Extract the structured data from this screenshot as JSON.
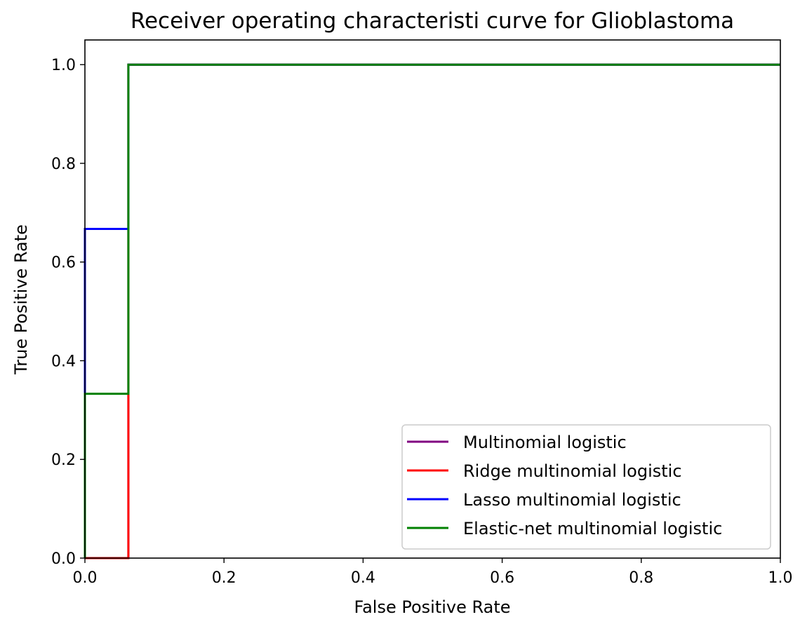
{
  "chart_data": {
    "type": "line",
    "title": "Receiver operating characteristi curve for Glioblastoma",
    "xlabel": "False Positive Rate",
    "ylabel": "True Positive Rate",
    "xlim": [
      0.0,
      1.0
    ],
    "ylim": [
      0.0,
      1.05
    ],
    "grid": false,
    "legend_position": "lower-right",
    "xticks": [
      {
        "value": 0.0,
        "label": "0.0"
      },
      {
        "value": 0.2,
        "label": "0.2"
      },
      {
        "value": 0.4,
        "label": "0.4"
      },
      {
        "value": 0.6,
        "label": "0.6"
      },
      {
        "value": 0.8,
        "label": "0.8"
      },
      {
        "value": 1.0,
        "label": "1.0"
      }
    ],
    "yticks": [
      {
        "value": 0.0,
        "label": "0.0"
      },
      {
        "value": 0.2,
        "label": "0.2"
      },
      {
        "value": 0.4,
        "label": "0.4"
      },
      {
        "value": 0.6,
        "label": "0.6"
      },
      {
        "value": 0.8,
        "label": "0.8"
      },
      {
        "value": 1.0,
        "label": "1.0"
      }
    ],
    "series": [
      {
        "name": "Multinomial logistic",
        "color": "#800080",
        "x": [
          0.0,
          0.0,
          0.0625,
          0.0625,
          1.0
        ],
        "y": [
          0.0,
          0.0,
          0.0,
          1.0,
          1.0
        ]
      },
      {
        "name": "Ridge multinomial logistic",
        "color": "#ff0000",
        "x": [
          0.0,
          0.0,
          0.0625,
          0.0625,
          1.0
        ],
        "y": [
          0.0,
          0.0,
          0.0,
          1.0,
          1.0
        ]
      },
      {
        "name": "Lasso multinomial logistic",
        "color": "#0000ff",
        "x": [
          0.0,
          0.0,
          0.0625,
          0.0625,
          1.0
        ],
        "y": [
          0.0,
          0.667,
          0.667,
          1.0,
          1.0
        ]
      },
      {
        "name": "Elastic-net multinomial logistic",
        "color": "#008000",
        "x": [
          0.0,
          0.0,
          0.0625,
          0.0625,
          1.0
        ],
        "y": [
          0.0,
          0.333,
          0.333,
          1.0,
          1.0
        ]
      }
    ]
  }
}
